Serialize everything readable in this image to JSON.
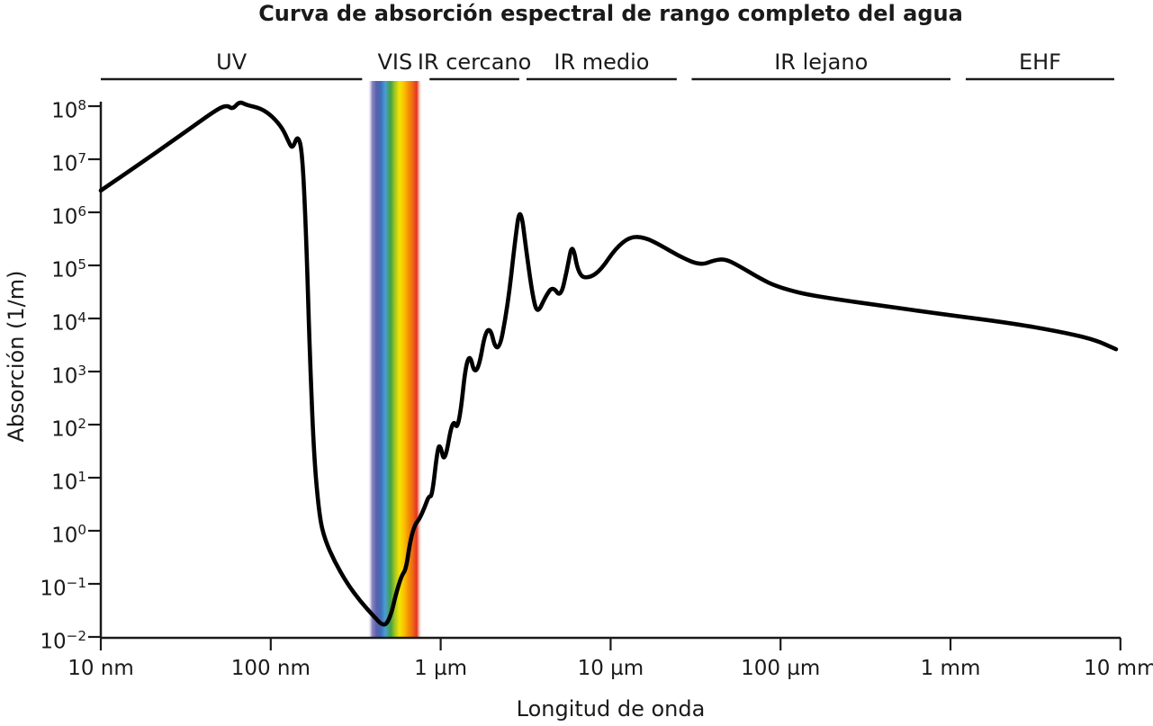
{
  "title": "Curva de absorción espectral de rango completo del agua",
  "axes": {
    "x_label": "Longitud de onda",
    "y_label": "Absorción (1/m)"
  },
  "chart_data": {
    "type": "line",
    "scale": "log-log",
    "grid": false,
    "legend": "none",
    "curve_color": "#000000",
    "text_color": "#1a1a1a",
    "x_axis": {
      "label": "Longitud de onda",
      "unit": "wavelength",
      "range_nm": [
        10,
        10000000
      ],
      "ticks": [
        {
          "value_nm": 10,
          "label": "10 nm"
        },
        {
          "value_nm": 100,
          "label": "100 nm"
        },
        {
          "value_nm": 1000,
          "label": "1 µm"
        },
        {
          "value_nm": 10000,
          "label": "10 µm"
        },
        {
          "value_nm": 100000,
          "label": "100 µm"
        },
        {
          "value_nm": 1000000,
          "label": "1 mm"
        },
        {
          "value_nm": 10000000,
          "label": "10 mm"
        }
      ]
    },
    "y_axis": {
      "label": "Absorción (1/m)",
      "unit": "1/m",
      "range_log10": [
        -2,
        8
      ],
      "tick_exponents": [
        8,
        7,
        6,
        5,
        4,
        3,
        2,
        1,
        0,
        -1,
        -2
      ]
    },
    "bands": [
      {
        "id": "uv",
        "label": "UV",
        "range_nm": [
          10,
          345
        ],
        "rainbow": false
      },
      {
        "id": "vis",
        "label": "VIS",
        "range_nm": [
          372,
          780
        ],
        "rainbow": true
      },
      {
        "id": "ir-near",
        "label": "IR cercano",
        "range_nm": [
          860,
          2900
        ],
        "rainbow": false
      },
      {
        "id": "ir-mid",
        "label": "IR medio",
        "range_nm": [
          3200,
          24500
        ],
        "rainbow": false
      },
      {
        "id": "ir-far",
        "label": "IR lejano",
        "range_nm": [
          30000,
          1000000
        ],
        "rainbow": false
      },
      {
        "id": "ehf",
        "label": "EHF",
        "range_nm": [
          1230000,
          9200000
        ],
        "rainbow": false
      }
    ],
    "vis_gradient": [
      {
        "offset": 0.0,
        "color": "#ffffff",
        "opacity": 0
      },
      {
        "offset": 0.08,
        "color": "#8c87c4",
        "opacity": 1
      },
      {
        "offset": 0.16,
        "color": "#5c5fab",
        "opacity": 1
      },
      {
        "offset": 0.24,
        "color": "#3f6db8",
        "opacity": 1
      },
      {
        "offset": 0.32,
        "color": "#4b9cd6",
        "opacity": 1
      },
      {
        "offset": 0.42,
        "color": "#41a23c",
        "opacity": 1
      },
      {
        "offset": 0.5,
        "color": "#a6c626",
        "opacity": 1
      },
      {
        "offset": 0.58,
        "color": "#f2e500",
        "opacity": 1
      },
      {
        "offset": 0.66,
        "color": "#fbc400",
        "opacity": 1
      },
      {
        "offset": 0.74,
        "color": "#f59300",
        "opacity": 1
      },
      {
        "offset": 0.82,
        "color": "#ef6a16",
        "opacity": 1
      },
      {
        "offset": 0.9,
        "color": "#e5341e",
        "opacity": 1
      },
      {
        "offset": 1.0,
        "color": "#ffffff",
        "opacity": 0
      }
    ],
    "curve_points_log10": [
      [
        1.0,
        6.41
      ],
      [
        1.2,
        6.85
      ],
      [
        1.47,
        7.45
      ],
      [
        1.678,
        7.93
      ],
      [
        1.742,
        8.02
      ],
      [
        1.776,
        7.94
      ],
      [
        1.816,
        8.09
      ],
      [
        1.858,
        8.02
      ],
      [
        1.943,
        7.96
      ],
      [
        2.012,
        7.8
      ],
      [
        2.07,
        7.58
      ],
      [
        2.105,
        7.33
      ],
      [
        2.128,
        7.19
      ],
      [
        2.16,
        7.47
      ],
      [
        2.186,
        7.12
      ],
      [
        2.208,
        5.6
      ],
      [
        2.229,
        3.4
      ],
      [
        2.255,
        1.36
      ],
      [
        2.287,
        0.25
      ],
      [
        2.319,
        -0.17
      ],
      [
        2.377,
        -0.59
      ],
      [
        2.451,
        -1.0
      ],
      [
        2.525,
        -1.32
      ],
      [
        2.6,
        -1.59
      ],
      [
        2.668,
        -1.82
      ],
      [
        2.706,
        -1.61
      ],
      [
        2.737,
        -1.19
      ],
      [
        2.769,
        -0.85
      ],
      [
        2.796,
        -0.73
      ],
      [
        2.822,
        -0.17
      ],
      [
        2.849,
        0.12
      ],
      [
        2.875,
        0.22
      ],
      [
        2.907,
        0.45
      ],
      [
        2.93,
        0.66
      ],
      [
        2.949,
        0.64
      ],
      [
        2.981,
        1.53
      ],
      [
        2.997,
        1.63
      ],
      [
        3.023,
        1.25
      ],
      [
        3.071,
        2.14
      ],
      [
        3.105,
        1.85
      ],
      [
        3.16,
        3.5
      ],
      [
        3.21,
        2.8
      ],
      [
        3.277,
        4.02
      ],
      [
        3.336,
        3.24
      ],
      [
        3.394,
        4.22
      ],
      [
        3.436,
        5.42
      ],
      [
        3.468,
        6.17
      ],
      [
        3.505,
        5.25
      ],
      [
        3.542,
        4.41
      ],
      [
        3.569,
        4.08
      ],
      [
        3.616,
        4.41
      ],
      [
        3.659,
        4.61
      ],
      [
        3.706,
        4.39
      ],
      [
        3.744,
        4.92
      ],
      [
        3.775,
        5.46
      ],
      [
        3.812,
        4.8
      ],
      [
        3.876,
        4.76
      ],
      [
        3.945,
        4.92
      ],
      [
        4.029,
        5.32
      ],
      [
        4.114,
        5.54
      ],
      [
        4.199,
        5.53
      ],
      [
        4.289,
        5.39
      ],
      [
        4.405,
        5.17
      ],
      [
        4.527,
        5.0
      ],
      [
        4.612,
        5.1
      ],
      [
        4.676,
        5.12
      ],
      [
        4.75,
        5.0
      ],
      [
        4.882,
        4.75
      ],
      [
        4.972,
        4.61
      ],
      [
        5.12,
        4.47
      ],
      [
        5.332,
        4.36
      ],
      [
        5.597,
        4.24
      ],
      [
        5.979,
        4.07
      ],
      [
        6.339,
        3.92
      ],
      [
        6.63,
        3.76
      ],
      [
        6.842,
        3.61
      ],
      [
        6.974,
        3.42
      ]
    ]
  }
}
